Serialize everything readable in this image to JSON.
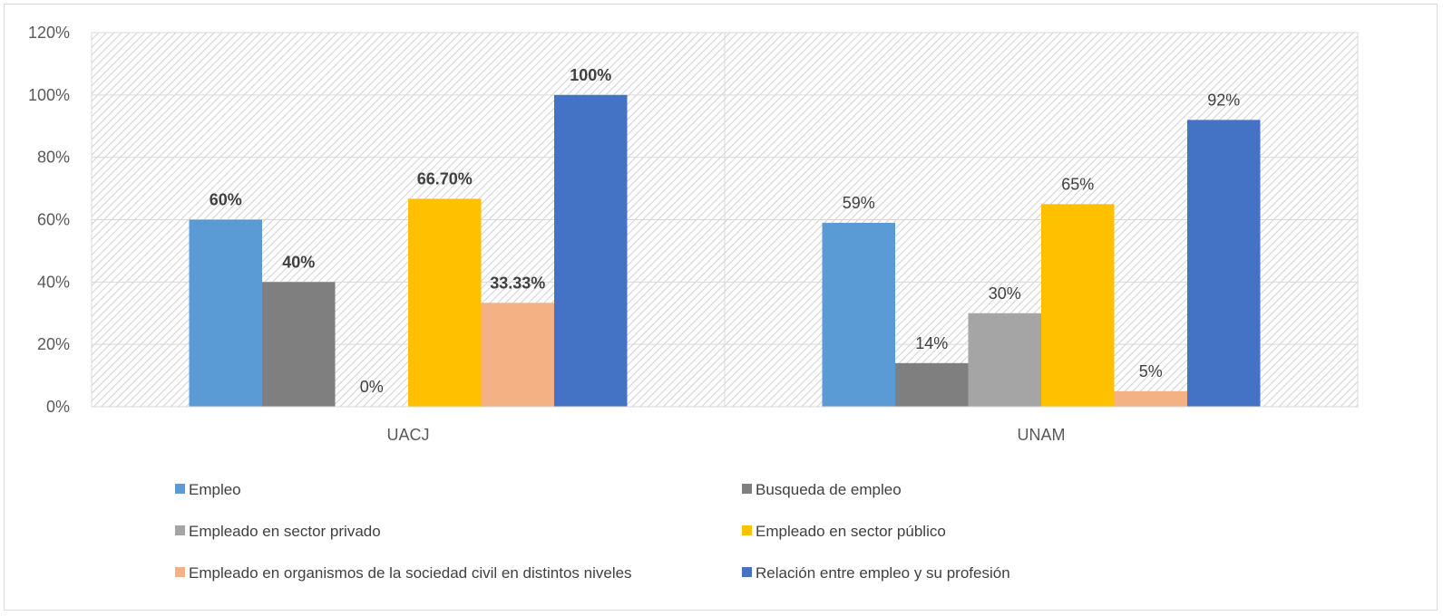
{
  "chart_data": {
    "type": "bar",
    "categories": [
      "UACJ",
      "UNAM"
    ],
    "ylim": [
      0,
      120
    ],
    "yticks": [
      "0%",
      "20%",
      "40%",
      "60%",
      "80%",
      "100%",
      "120%"
    ],
    "grid": true,
    "legend_position": "bottom",
    "series": [
      {
        "name": "Empleo",
        "color": "#5b9bd5",
        "values": [
          60,
          59
        ],
        "labels": [
          "60%",
          "59%"
        ]
      },
      {
        "name": "Busqueda de empleo",
        "color": "#7f7f7f",
        "values": [
          40,
          14
        ],
        "labels": [
          "40%",
          "14%"
        ]
      },
      {
        "name": "Empleado en sector privado",
        "color": "#a5a5a5",
        "values": [
          0,
          30
        ],
        "labels": [
          "0%",
          "30%"
        ]
      },
      {
        "name": "Empleado en sector público",
        "color": "#ffc000",
        "values": [
          66.7,
          65
        ],
        "labels": [
          "66.70%",
          "65%"
        ]
      },
      {
        "name": "Empleado en organismos de la sociedad civil en distintos niveles",
        "color": "#f4b183",
        "values": [
          33.33,
          5
        ],
        "labels": [
          "33.33%",
          "5%"
        ]
      },
      {
        "name": "Relación entre empleo y su profesión",
        "color": "#4472c4",
        "values": [
          100,
          92
        ],
        "labels": [
          "100%",
          "92%"
        ]
      }
    ],
    "label_bold": [
      true,
      false
    ],
    "label_bold_exceptions": [
      [
        0,
        2
      ]
    ]
  }
}
